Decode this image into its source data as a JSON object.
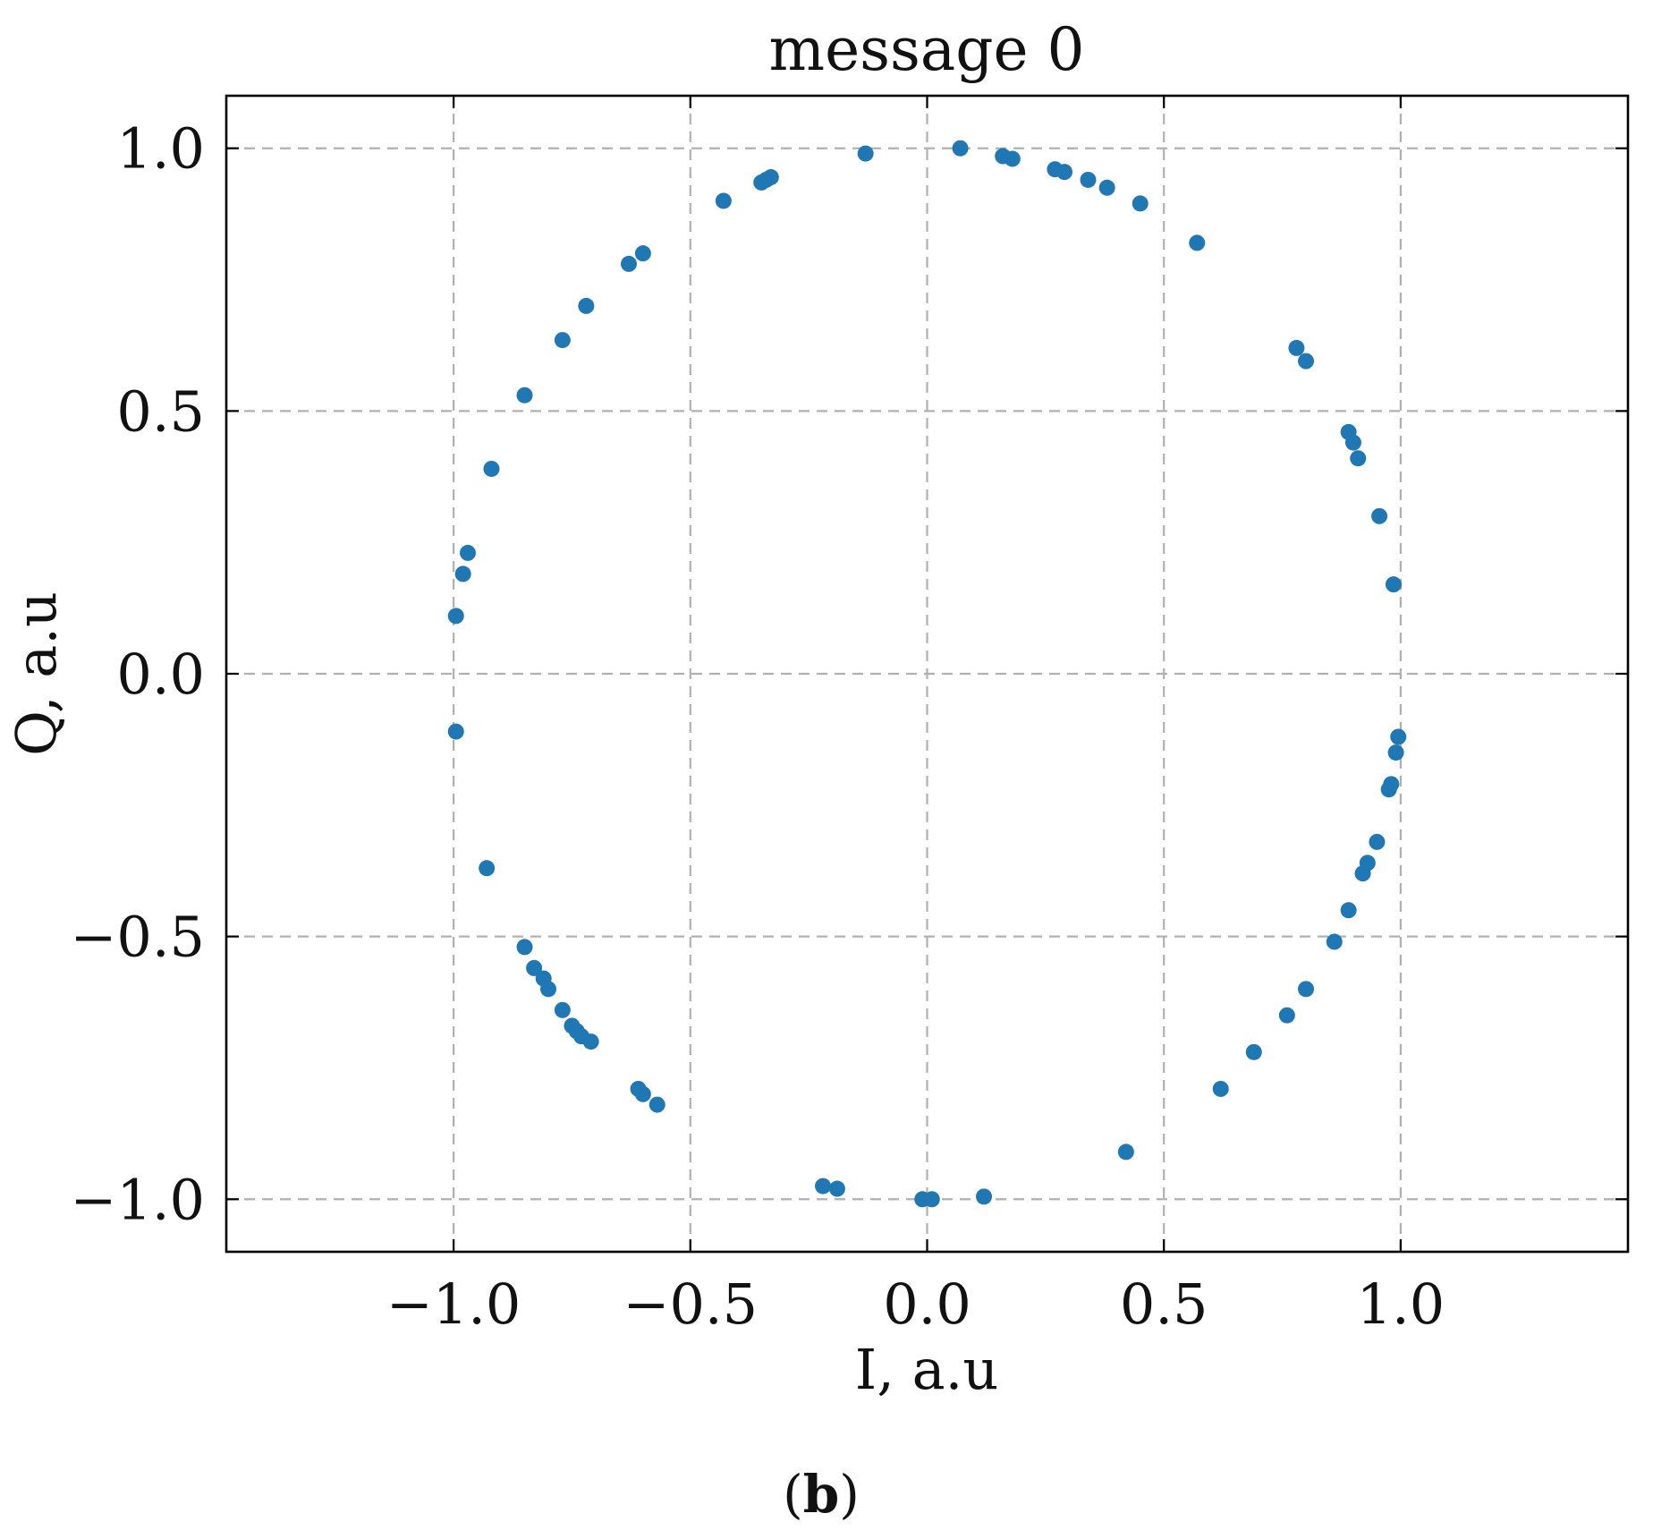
{
  "chart_data": {
    "type": "scatter",
    "title": "message 0",
    "xlabel": "I, a.u",
    "ylabel": "Q, a.u",
    "xlim": [
      -1.48,
      1.48
    ],
    "ylim": [
      -1.1,
      1.1
    ],
    "xticks": [
      -1.0,
      -0.5,
      0.0,
      0.5,
      1.0
    ],
    "yticks": [
      -1.0,
      -0.5,
      0.0,
      0.5,
      1.0
    ],
    "xtick_labels": [
      "−1.0",
      "−0.5",
      "0.0",
      "0.5",
      "1.0"
    ],
    "ytick_labels": [
      "−1.0",
      "−0.5",
      "0.0",
      "0.5",
      "1.0"
    ],
    "grid": true,
    "color": "#1f77b4",
    "points": [
      {
        "x": -0.13,
        "y": 0.99
      },
      {
        "x": 0.07,
        "y": 1.0
      },
      {
        "x": 0.16,
        "y": 0.985
      },
      {
        "x": 0.18,
        "y": 0.98
      },
      {
        "x": 0.27,
        "y": 0.96
      },
      {
        "x": 0.29,
        "y": 0.955
      },
      {
        "x": 0.34,
        "y": 0.94
      },
      {
        "x": 0.38,
        "y": 0.925
      },
      {
        "x": 0.45,
        "y": 0.895
      },
      {
        "x": 0.57,
        "y": 0.82
      },
      {
        "x": -0.43,
        "y": 0.9
      },
      {
        "x": -0.35,
        "y": 0.935
      },
      {
        "x": -0.34,
        "y": 0.94
      },
      {
        "x": -0.33,
        "y": 0.945
      },
      {
        "x": -0.6,
        "y": 0.8
      },
      {
        "x": -0.63,
        "y": 0.78
      },
      {
        "x": -0.72,
        "y": 0.7
      },
      {
        "x": -0.77,
        "y": 0.635
      },
      {
        "x": -0.85,
        "y": 0.53
      },
      {
        "x": -0.92,
        "y": 0.39
      },
      {
        "x": -0.97,
        "y": 0.23
      },
      {
        "x": -0.98,
        "y": 0.19
      },
      {
        "x": -0.995,
        "y": 0.11
      },
      {
        "x": -0.995,
        "y": -0.11
      },
      {
        "x": -0.93,
        "y": -0.37
      },
      {
        "x": -0.85,
        "y": -0.52
      },
      {
        "x": -0.83,
        "y": -0.56
      },
      {
        "x": -0.81,
        "y": -0.58
      },
      {
        "x": -0.8,
        "y": -0.6
      },
      {
        "x": -0.77,
        "y": -0.64
      },
      {
        "x": -0.75,
        "y": -0.67
      },
      {
        "x": -0.74,
        "y": -0.68
      },
      {
        "x": -0.73,
        "y": -0.69
      },
      {
        "x": -0.71,
        "y": -0.7
      },
      {
        "x": -0.61,
        "y": -0.79
      },
      {
        "x": -0.6,
        "y": -0.8
      },
      {
        "x": -0.57,
        "y": -0.82
      },
      {
        "x": -0.22,
        "y": -0.975
      },
      {
        "x": -0.19,
        "y": -0.98
      },
      {
        "x": -0.01,
        "y": -1.0
      },
      {
        "x": 0.01,
        "y": -1.0
      },
      {
        "x": 0.12,
        "y": -0.995
      },
      {
        "x": 0.42,
        "y": -0.91
      },
      {
        "x": 0.62,
        "y": -0.79
      },
      {
        "x": 0.69,
        "y": -0.72
      },
      {
        "x": 0.76,
        "y": -0.65
      },
      {
        "x": 0.8,
        "y": -0.6
      },
      {
        "x": 0.86,
        "y": -0.51
      },
      {
        "x": 0.89,
        "y": -0.45
      },
      {
        "x": 0.92,
        "y": -0.38
      },
      {
        "x": 0.93,
        "y": -0.36
      },
      {
        "x": 0.95,
        "y": -0.32
      },
      {
        "x": 0.975,
        "y": -0.22
      },
      {
        "x": 0.98,
        "y": -0.21
      },
      {
        "x": 0.99,
        "y": -0.15
      },
      {
        "x": 0.995,
        "y": -0.12
      },
      {
        "x": 0.985,
        "y": 0.17
      },
      {
        "x": 0.955,
        "y": 0.3
      },
      {
        "x": 0.91,
        "y": 0.41
      },
      {
        "x": 0.9,
        "y": 0.44
      },
      {
        "x": 0.89,
        "y": 0.46
      },
      {
        "x": 0.8,
        "y": 0.595
      },
      {
        "x": 0.78,
        "y": 0.62
      }
    ]
  },
  "caption": {
    "open_paren": "(",
    "letter": "b",
    "close_paren": ")"
  }
}
